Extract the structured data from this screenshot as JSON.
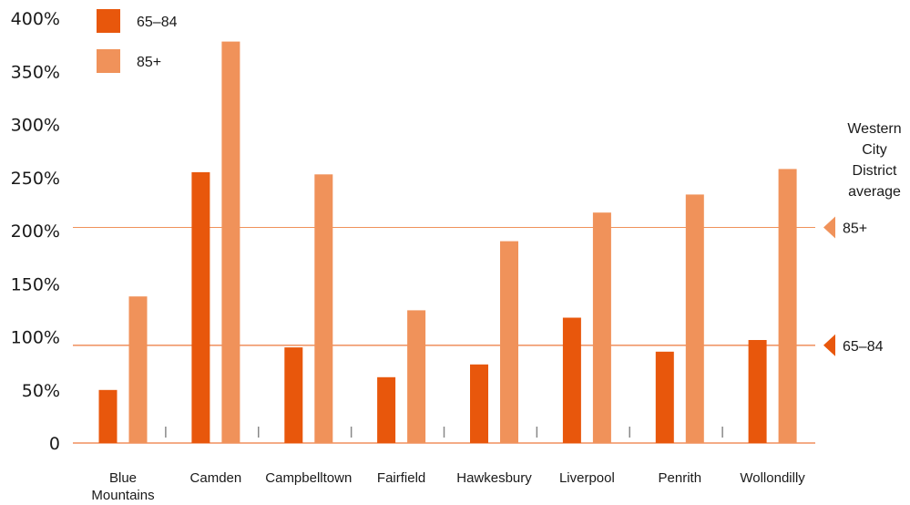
{
  "chart_data": {
    "type": "bar",
    "categories": [
      "Blue Mountains",
      "Camden",
      "Campbelltown",
      "Fairfield",
      "Hawkesbury",
      "Liverpool",
      "Penrith",
      "Wollondilly"
    ],
    "series": [
      {
        "name": "65–84",
        "color": "#e8570c",
        "values": [
          50,
          255,
          90,
          62,
          74,
          118,
          86,
          97
        ]
      },
      {
        "name": "85+",
        "color": "#f0925a",
        "values": [
          138,
          378,
          253,
          125,
          190,
          217,
          234,
          258
        ]
      }
    ],
    "yticks": [
      "0",
      "50%",
      "100%",
      "150%",
      "200%",
      "250%",
      "300%",
      "350%",
      "400%"
    ],
    "ylim": [
      0,
      400
    ],
    "legend_position": "top-left",
    "reference_title": "Western City District average",
    "reference_lines": [
      {
        "label": "85+",
        "value": 203,
        "color": "#f0925a"
      },
      {
        "label": "65–84",
        "value": 92,
        "color": "#e8570c"
      }
    ]
  }
}
